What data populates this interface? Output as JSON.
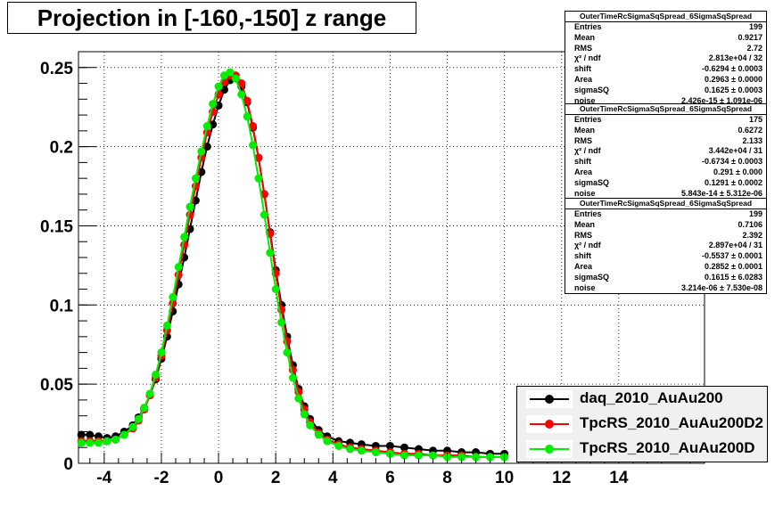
{
  "title": "Projection in [-160,-150] z range",
  "chart_data": {
    "type": "scatter",
    "xlim": [
      -4.9,
      17.0
    ],
    "ylim": [
      0,
      0.26
    ],
    "x_ticks": [
      -4,
      -2,
      0,
      2,
      4,
      6,
      8,
      10,
      12,
      14
    ],
    "y_ticks": [
      0,
      0.05,
      0.1,
      0.15,
      0.2,
      0.25
    ],
    "x_tick_labels": [
      "-4",
      "-2",
      "0",
      "2",
      "4",
      "6",
      "8",
      "10",
      "12",
      "14"
    ],
    "y_tick_labels": [
      "0",
      "0.05",
      "0.1",
      "0.15",
      "0.2",
      "0.25"
    ],
    "grid": true,
    "legend_position": "bottom-right",
    "series": [
      {
        "name": "daq_2010_AuAu200",
        "color": "#000000",
        "x": [
          -4.8,
          -4.5,
          -4.2,
          -3.9,
          -3.6,
          -3.3,
          -3.0,
          -2.8,
          -2.6,
          -2.4,
          -2.2,
          -2.0,
          -1.8,
          -1.6,
          -1.4,
          -1.2,
          -1.0,
          -0.8,
          -0.6,
          -0.4,
          -0.2,
          0.0,
          0.2,
          0.4,
          0.6,
          0.8,
          1.0,
          1.2,
          1.4,
          1.6,
          1.8,
          2.0,
          2.2,
          2.4,
          2.6,
          2.8,
          3.0,
          3.2,
          3.5,
          3.8,
          4.2,
          4.6,
          5.0,
          5.5,
          6.0,
          6.5,
          7.0,
          7.5,
          8.0,
          8.5,
          9.0,
          9.5,
          10.0
        ],
        "y": [
          0.018,
          0.018,
          0.017,
          0.016,
          0.017,
          0.02,
          0.024,
          0.029,
          0.035,
          0.043,
          0.053,
          0.066,
          0.08,
          0.096,
          0.113,
          0.13,
          0.148,
          0.166,
          0.184,
          0.2,
          0.214,
          0.226,
          0.236,
          0.242,
          0.243,
          0.238,
          0.228,
          0.212,
          0.193,
          0.17,
          0.146,
          0.122,
          0.1,
          0.08,
          0.062,
          0.047,
          0.036,
          0.028,
          0.021,
          0.017,
          0.014,
          0.013,
          0.012,
          0.011,
          0.011,
          0.01,
          0.009,
          0.008,
          0.008,
          0.007,
          0.007,
          0.006,
          0.006
        ]
      },
      {
        "name": "TpcRS_2010_AuAu200D2",
        "color": "#ff0000",
        "x": [
          -4.8,
          -4.5,
          -4.2,
          -3.9,
          -3.6,
          -3.3,
          -3.0,
          -2.8,
          -2.6,
          -2.4,
          -2.2,
          -2.0,
          -1.8,
          -1.6,
          -1.4,
          -1.2,
          -1.0,
          -0.8,
          -0.6,
          -0.4,
          -0.2,
          0.0,
          0.2,
          0.4,
          0.6,
          0.8,
          1.0,
          1.2,
          1.4,
          1.6,
          1.8,
          2.0,
          2.2,
          2.4,
          2.6,
          2.8,
          3.0,
          3.2,
          3.5,
          3.8,
          4.2,
          4.6,
          5.0,
          5.5,
          6.0,
          6.5,
          7.0,
          7.5,
          8.0,
          8.5,
          9.0,
          9.5,
          10.0
        ],
        "y": [
          0.014,
          0.014,
          0.014,
          0.014,
          0.015,
          0.018,
          0.022,
          0.027,
          0.034,
          0.043,
          0.054,
          0.068,
          0.084,
          0.101,
          0.119,
          0.138,
          0.157,
          0.175,
          0.193,
          0.209,
          0.222,
          0.233,
          0.241,
          0.245,
          0.245,
          0.24,
          0.229,
          0.213,
          0.193,
          0.17,
          0.145,
          0.12,
          0.097,
          0.077,
          0.059,
          0.045,
          0.034,
          0.026,
          0.019,
          0.015,
          0.012,
          0.01,
          0.009,
          0.008,
          0.007,
          0.006,
          0.006,
          0.005,
          0.005,
          0.005,
          0.004,
          0.004,
          0.004
        ]
      },
      {
        "name": "TpcRS_2010_AuAu200D",
        "color": "#00ee00",
        "x": [
          -4.8,
          -4.5,
          -4.2,
          -3.9,
          -3.6,
          -3.3,
          -3.0,
          -2.8,
          -2.6,
          -2.4,
          -2.2,
          -2.0,
          -1.8,
          -1.6,
          -1.4,
          -1.2,
          -1.0,
          -0.8,
          -0.6,
          -0.4,
          -0.2,
          0.0,
          0.2,
          0.4,
          0.6,
          0.8,
          1.0,
          1.2,
          1.4,
          1.6,
          1.8,
          2.0,
          2.2,
          2.4,
          2.6,
          2.8,
          3.0,
          3.2,
          3.5,
          3.8,
          4.2,
          4.6,
          5.0,
          5.5,
          6.0,
          6.5,
          7.0,
          7.5,
          8.0,
          8.5,
          9.0,
          9.5,
          10.0
        ],
        "y": [
          0.013,
          0.013,
          0.013,
          0.014,
          0.015,
          0.018,
          0.023,
          0.028,
          0.035,
          0.044,
          0.056,
          0.07,
          0.087,
          0.105,
          0.124,
          0.143,
          0.162,
          0.18,
          0.197,
          0.213,
          0.227,
          0.238,
          0.245,
          0.247,
          0.243,
          0.233,
          0.219,
          0.201,
          0.18,
          0.157,
          0.133,
          0.11,
          0.089,
          0.07,
          0.054,
          0.041,
          0.031,
          0.024,
          0.018,
          0.014,
          0.011,
          0.009,
          0.008,
          0.007,
          0.006,
          0.005,
          0.005,
          0.005,
          0.004,
          0.004,
          0.004,
          0.004,
          0.004
        ]
      }
    ]
  },
  "stats_boxes": [
    {
      "header": "OuterTimeRcSigmaSqSpread_6SigmaSqSpread",
      "rows": [
        [
          "Entries",
          "199"
        ],
        [
          "Mean",
          "0.9217"
        ],
        [
          "RMS",
          "2.72"
        ],
        [
          "χ² / ndf",
          "2.813e+04 / 32"
        ],
        [
          "shift",
          "-0.6294 ± 0.0003"
        ],
        [
          "Area",
          "0.2963 ± 0.0000"
        ],
        [
          "sigmaSQ",
          "0.1625 ± 0.0003"
        ],
        [
          "noise",
          "2.426e-15 ± 1.091e-06"
        ]
      ]
    },
    {
      "header": "OuterTimeRcSigmaSqSpread_6SigmaSqSpread",
      "rows": [
        [
          "Entries",
          "175"
        ],
        [
          "Mean",
          "0.6272"
        ],
        [
          "RMS",
          "2.133"
        ],
        [
          "χ² / ndf",
          "3.442e+04 / 31"
        ],
        [
          "shift",
          "-0.6734 ± 0.0003"
        ],
        [
          "Area",
          "0.291 ± 0.000"
        ],
        [
          "sigmaSQ",
          "0.1291 ± 0.0002"
        ],
        [
          "noise",
          "5.843e-14 ± 5.312e-06"
        ]
      ]
    },
    {
      "header": "OuterTimeRcSigmaSqSpread_6SigmaSqSpread",
      "rows": [
        [
          "Entries",
          "199"
        ],
        [
          "Mean",
          "0.7106"
        ],
        [
          "RMS",
          "2.392"
        ],
        [
          "χ² / ndf",
          "2.897e+04 / 31"
        ],
        [
          "shift",
          "-0.5537 ± 0.0001"
        ],
        [
          "Area",
          "0.2852 ± 0.0001"
        ],
        [
          "sigmaSQ",
          "0.1615 ± 6.0283"
        ],
        [
          "noise",
          "3.214e-06 ± 7.530e-08"
        ]
      ]
    }
  ],
  "legend": [
    {
      "label": "daq_2010_AuAu200",
      "color": "#000000"
    },
    {
      "label": "TpcRS_2010_AuAu200D2",
      "color": "#ff0000"
    },
    {
      "label": "TpcRS_2010_AuAu200D",
      "color": "#00ee00"
    }
  ]
}
